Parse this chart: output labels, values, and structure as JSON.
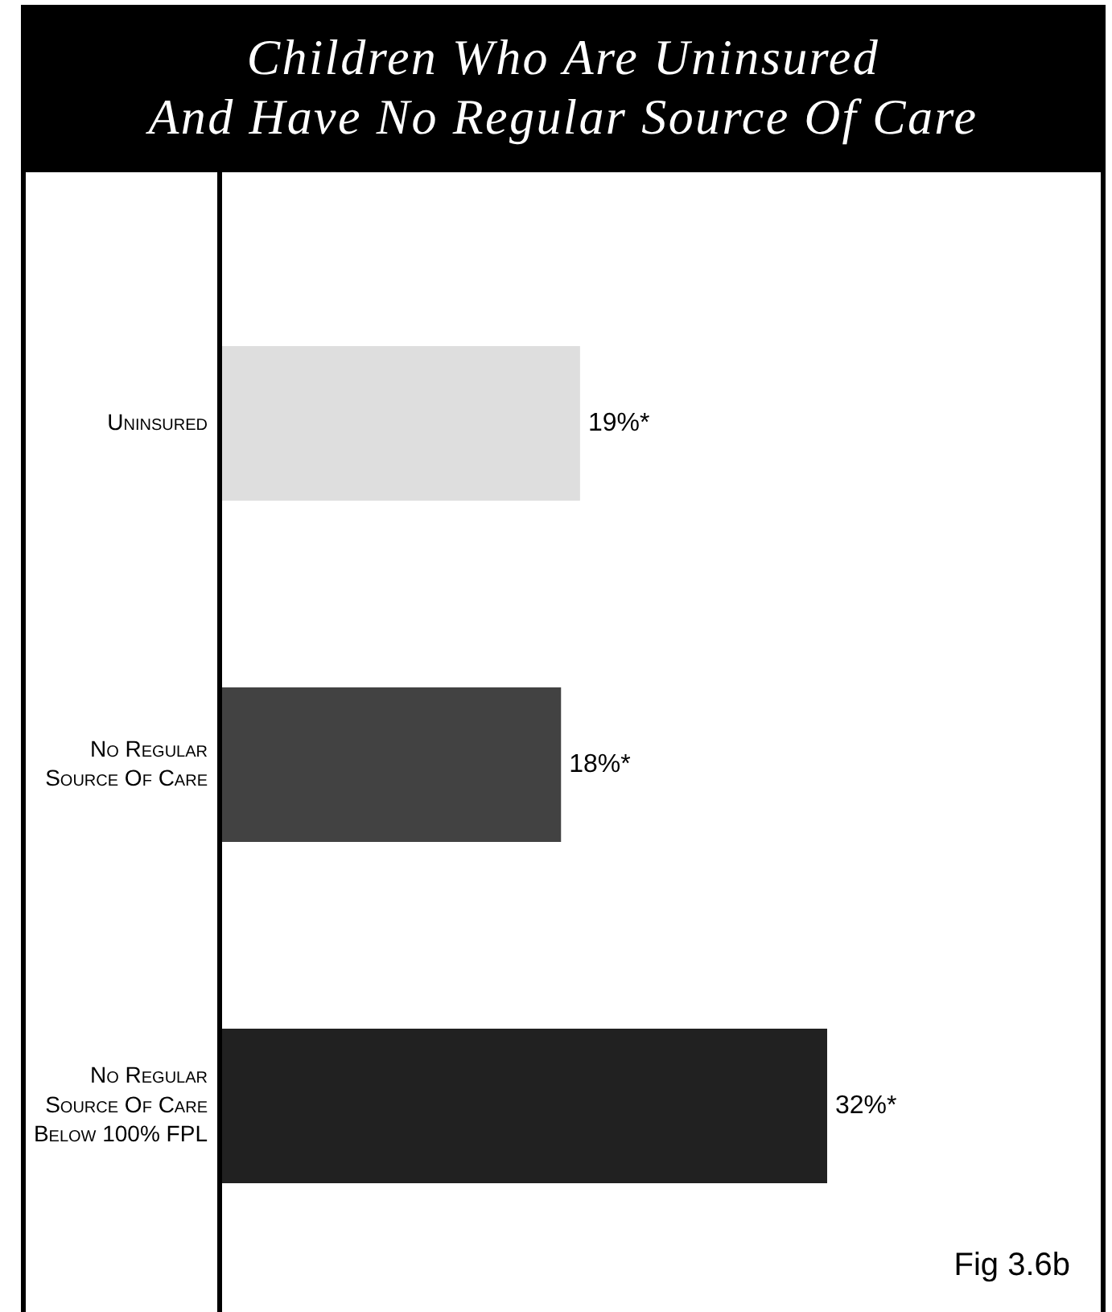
{
  "chart_data": {
    "type": "bar",
    "orientation": "horizontal",
    "title": "Children Who Are Uninsured\nAnd Have No Regular Source Of Care",
    "categories": [
      "Uninsured",
      "No Regular Source Of Care",
      "No Regular Source Of Care Below 100% FPL"
    ],
    "values": [
      19,
      18,
      32
    ],
    "colors": [
      "#dedede",
      "#424242",
      "#212121"
    ],
    "value_labels": [
      "19%*",
      "18%*",
      "32%*"
    ],
    "tick_labels": "y",
    "annotations": [
      "Fig 3.6b"
    ]
  }
}
